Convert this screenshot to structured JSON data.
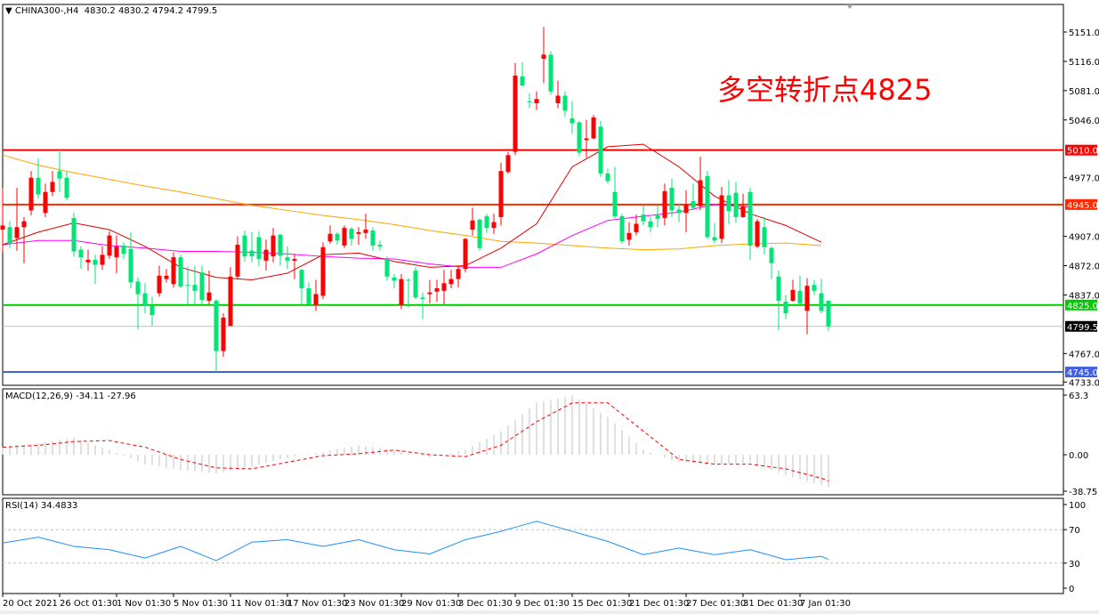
{
  "header": {
    "symbol_info": "CHINA300-,H4",
    "ohlc_text": "4830.2 4830.2 4794.2 4799.5"
  },
  "annotation": "多空转折点4825",
  "colors": {
    "up_candle": "#ff0000",
    "down_candle": "#00e676",
    "ma_fast": "#e00000",
    "ma_mid": "#ff00ff",
    "ma_slow": "#ffa500",
    "macd_hist": "#c0c0c0",
    "macd_signal": "#ff0000",
    "rsi": "#1e90ff"
  },
  "chart_data": [
    {
      "type": "candlestick",
      "title": "CHINA300-,H4",
      "y_ticks": [
        5151.0,
        5116.0,
        5081.0,
        5046.0,
        4977.0,
        4907.0,
        4872.0,
        4837.0,
        4767.0,
        4733.0
      ],
      "y_tick_labels": [
        "5151.0",
        "5116.0",
        "5081.0",
        "5046.0",
        "4977.0",
        "4907.0",
        "4872.0",
        "4837.0",
        "4767.0",
        "4733.0"
      ],
      "ylim": [
        4728,
        5182
      ],
      "x_tick_labels": [
        "20 Oct 2021",
        "26 Oct 01:30",
        "1 Nov 01:30",
        "5 Nov 01:30",
        "11 Nov 01:30",
        "17 Nov 01:30",
        "23 Nov 01:30",
        "29 Nov 01:30",
        "3 Dec 01:30",
        "9 Dec 01:30",
        "15 Dec 01:30",
        "21 Dec 01:30",
        "27 Dec 01:30",
        "31 Dec 01:30",
        "7 Jan 01:30"
      ],
      "x_tick_every_bars": 8,
      "current_price": {
        "value": 4799.5,
        "label": "4799.5"
      },
      "levels": [
        {
          "value": 5010.0,
          "label": "5010.0",
          "color": "#ff0000"
        },
        {
          "value": 4945.0,
          "label": "4945.0",
          "color": "#ff2a00"
        },
        {
          "value": 4825.0,
          "label": "4825.0",
          "color": "#00cc00"
        },
        {
          "value": 4745.0,
          "label": "4745.0",
          "color": "#4060e0"
        }
      ],
      "candles_ohlc": [
        [
          4915,
          4965,
          4888,
          4920
        ],
        [
          4918,
          4925,
          4893,
          4898
        ],
        [
          4905,
          4965,
          4890,
          4918
        ],
        [
          4918,
          4930,
          4875,
          4925
        ],
        [
          4938,
          4985,
          4932,
          4977
        ],
        [
          4977,
          5000,
          4952,
          4957
        ],
        [
          4935,
          4970,
          4930,
          4960
        ],
        [
          4960,
          4985,
          4955,
          4972
        ],
        [
          4985,
          5010,
          4960,
          4976
        ],
        [
          4977,
          4985,
          4950,
          4953
        ],
        [
          4929,
          4935,
          4883,
          4889
        ],
        [
          4891,
          4895,
          4868,
          4882
        ],
        [
          4876,
          4891,
          4866,
          4879
        ],
        [
          4879,
          4885,
          4850,
          4873
        ],
        [
          4873,
          4895,
          4867,
          4885
        ],
        [
          4884,
          4913,
          4880,
          4908
        ],
        [
          4882,
          4908,
          4863,
          4895
        ],
        [
          4896,
          4900,
          4880,
          4886
        ],
        [
          4892,
          4912,
          4845,
          4852
        ],
        [
          4853,
          4858,
          4796,
          4838
        ],
        [
          4839,
          4851,
          4815,
          4824
        ],
        [
          4824,
          4835,
          4800,
          4813
        ],
        [
          4839,
          4872,
          4835,
          4860
        ],
        [
          4856,
          4868,
          4852,
          4860
        ],
        [
          4850,
          4888,
          4846,
          4882
        ],
        [
          4882,
          4885,
          4845,
          4847
        ],
        [
          4849,
          4871,
          4826,
          4848
        ],
        [
          4849,
          4872,
          4826,
          4842
        ],
        [
          4864,
          4872,
          4826,
          4831
        ],
        [
          4830,
          4866,
          4826,
          4840
        ],
        [
          4830,
          4832,
          4745,
          4770
        ],
        [
          4770,
          4815,
          4763,
          4810
        ],
        [
          4800,
          4870,
          4800,
          4859
        ],
        [
          4859,
          4907,
          4856,
          4897
        ],
        [
          4908,
          4914,
          4877,
          4883
        ],
        [
          4890,
          4912,
          4876,
          4883
        ],
        [
          4906,
          4913,
          4871,
          4880
        ],
        [
          4878,
          4903,
          4866,
          4891
        ],
        [
          4883,
          4917,
          4876,
          4908
        ],
        [
          4909,
          4910,
          4872,
          4884
        ],
        [
          4882,
          4895,
          4868,
          4878
        ],
        [
          4878,
          4886,
          4856,
          4880
        ],
        [
          4867,
          4868,
          4826,
          4845
        ],
        [
          4845,
          4852,
          4826,
          4826
        ],
        [
          4825,
          4855,
          4818,
          4838
        ],
        [
          4836,
          4900,
          4832,
          4894
        ],
        [
          4901,
          4920,
          4898,
          4910
        ],
        [
          4910,
          4912,
          4897,
          4902
        ],
        [
          4896,
          4920,
          4893,
          4917
        ],
        [
          4916,
          4918,
          4896,
          4904
        ],
        [
          4910,
          4918,
          4897,
          4912
        ],
        [
          4911,
          4934,
          4904,
          4915
        ],
        [
          4914,
          4918,
          4890,
          4896
        ],
        [
          4897,
          4902,
          4890,
          4895
        ],
        [
          4880,
          4883,
          4854,
          4859
        ],
        [
          4858,
          4862,
          4845,
          4854
        ],
        [
          4825,
          4862,
          4820,
          4856
        ],
        [
          4855,
          4857,
          4822,
          4854
        ],
        [
          4866,
          4870,
          4832,
          4834
        ],
        [
          4834,
          4840,
          4808,
          4832
        ],
        [
          4838,
          4855,
          4827,
          4840
        ],
        [
          4841,
          4855,
          4829,
          4845
        ],
        [
          4842,
          4867,
          4826,
          4851
        ],
        [
          4850,
          4867,
          4845,
          4856
        ],
        [
          4856,
          4872,
          4846,
          4868
        ],
        [
          4868,
          4905,
          4864,
          4904
        ],
        [
          4915,
          4941,
          4908,
          4926
        ],
        [
          4927,
          4928,
          4890,
          4893
        ],
        [
          4931,
          4934,
          4911,
          4917
        ],
        [
          4917,
          4934,
          4910,
          4924
        ],
        [
          4930,
          4995,
          4920,
          4985
        ],
        [
          4984,
          5008,
          4982,
          5004
        ],
        [
          5008,
          5114,
          5004,
          5099
        ],
        [
          5098,
          5115,
          5086,
          5087
        ],
        [
          5068,
          5078,
          5060,
          5067
        ],
        [
          5066,
          5080,
          5058,
          5071
        ],
        [
          5119,
          5157,
          5090,
          5124
        ],
        [
          5124,
          5128,
          5076,
          5080
        ],
        [
          5066,
          5093,
          5060,
          5075
        ],
        [
          5075,
          5080,
          5050,
          5057
        ],
        [
          5048,
          5068,
          5030,
          5042
        ],
        [
          5043,
          5045,
          5003,
          5007
        ],
        [
          5022,
          5046,
          5001,
          5024
        ],
        [
          5024,
          5052,
          5023,
          5049
        ],
        [
          5038,
          5045,
          4978,
          4982
        ],
        [
          4982,
          4988,
          4970,
          4973
        ],
        [
          4960,
          4990,
          4928,
          4931
        ],
        [
          4931,
          4934,
          4898,
          4901
        ],
        [
          4903,
          4924,
          4896,
          4911
        ],
        [
          4912,
          4933,
          4908,
          4922
        ],
        [
          4933,
          4944,
          4920,
          4925
        ],
        [
          4925,
          4930,
          4912,
          4918
        ],
        [
          4932,
          4944,
          4918,
          4928
        ],
        [
          4929,
          4970,
          4920,
          4961
        ],
        [
          4965,
          4976,
          4930,
          4938
        ],
        [
          4939,
          4946,
          4924,
          4935
        ],
        [
          4935,
          4962,
          4912,
          4945
        ],
        [
          4949,
          4970,
          4938,
          4941
        ],
        [
          4943,
          5002,
          4938,
          4974
        ],
        [
          4979,
          4985,
          4904,
          4906
        ],
        [
          4906,
          4923,
          4899,
          4902
        ],
        [
          4904,
          4966,
          4899,
          4956
        ],
        [
          4956,
          4974,
          4921,
          4937
        ],
        [
          4959,
          4972,
          4923,
          4930
        ],
        [
          4930,
          4958,
          4929,
          4943
        ],
        [
          4960,
          4965,
          4879,
          4896
        ],
        [
          4895,
          4928,
          4893,
          4925
        ],
        [
          4918,
          4930,
          4885,
          4894
        ],
        [
          4893,
          4895,
          4856,
          4875
        ],
        [
          4859,
          4866,
          4795,
          4830
        ],
        [
          4829,
          4837,
          4808,
          4815
        ],
        [
          4830,
          4855,
          4829,
          4843
        ],
        [
          4842,
          4860,
          4826,
          4827
        ],
        [
          4818,
          4857,
          4790,
          4848
        ],
        [
          4849,
          4855,
          4837,
          4842
        ],
        [
          4839,
          4856,
          4815,
          4818
        ],
        [
          4830.2,
          4830.2,
          4794.2,
          4799.5
        ]
      ],
      "moving_averages_every_5_bars": {
        "slow": [
          5004,
          4992,
          4983,
          4975,
          4967,
          4960,
          4952,
          4944,
          4938,
          4932,
          4927,
          4921,
          4914,
          4908,
          4901,
          4899,
          4896,
          4893,
          4891,
          4892,
          4896,
          4898,
          4899,
          4896
        ],
        "fast": [
          4897,
          4912,
          4923,
          4915,
          4895,
          4870,
          4858,
          4855,
          4863,
          4885,
          4887,
          4877,
          4870,
          4872,
          4893,
          4922,
          4990,
          5014,
          5017,
          4990,
          4955,
          4934,
          4920,
          4900
        ],
        "mid": [
          4897,
          4902,
          4902,
          4896,
          4893,
          4889,
          4889,
          4888,
          4886,
          4883,
          4881,
          4880,
          4874,
          4870,
          4870,
          4886,
          4908,
          4926,
          4931,
          4936,
          4945,
          4942
        ]
      }
    },
    {
      "type": "bar+line",
      "title": "MACD(12,26,9) -34.11 -27.96",
      "y_tick_labels": [
        "63.3",
        "0.00",
        "-38.75"
      ],
      "y_ticks": [
        63.3,
        0,
        -38.75
      ],
      "ylim": [
        -38.75,
        63.3
      ],
      "macd_every_5_bars": [
        8,
        12,
        18,
        5,
        -10,
        -16,
        -20,
        -12,
        -3,
        3,
        10,
        5,
        -3,
        5,
        25,
        55,
        63,
        40,
        5,
        -8,
        -10,
        -8,
        -22,
        -32,
        -34.11
      ],
      "signal_every_5_bars": [
        8,
        10,
        14,
        15,
        8,
        -5,
        -14,
        -15,
        -8,
        -1,
        1,
        5,
        0,
        -2,
        10,
        35,
        55,
        55,
        25,
        -5,
        -10,
        -10,
        -15,
        -25,
        -27.96
      ]
    },
    {
      "type": "line",
      "title": "RSI(14) 34.4833",
      "y_ticks": [
        100,
        70,
        30,
        0
      ],
      "y_tick_labels": [
        "100",
        "70",
        "30",
        "0"
      ],
      "ylim": [
        0,
        100
      ],
      "levels": [
        70,
        30
      ],
      "rsi_every_5_bars": [
        54,
        61,
        50,
        46,
        36,
        50,
        33,
        55,
        58,
        50,
        58,
        46,
        41,
        58,
        68,
        80,
        68,
        56,
        40,
        48,
        40,
        46,
        34,
        38,
        34.4833
      ]
    }
  ]
}
